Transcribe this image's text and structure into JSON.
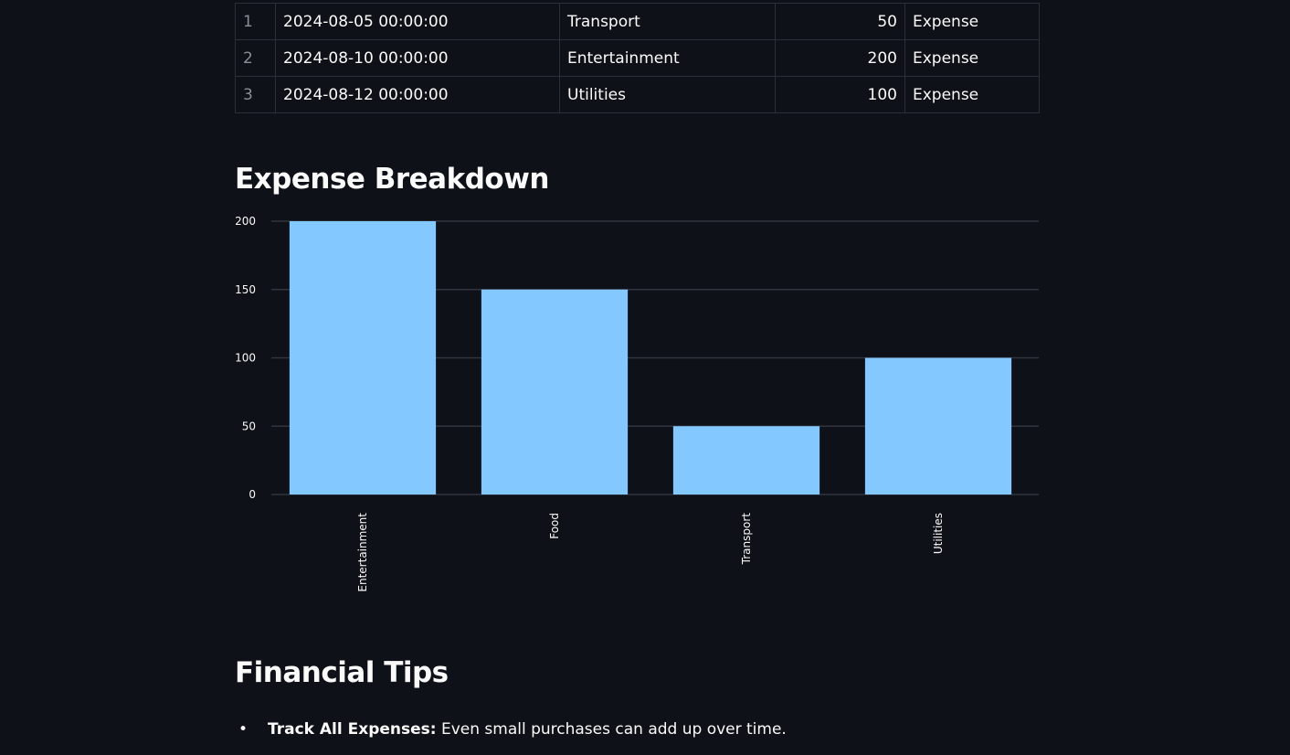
{
  "table": {
    "rows": [
      {
        "index": "1",
        "date": "2024-08-05 00:00:00",
        "category": "Transport",
        "amount": "50",
        "type": "Expense"
      },
      {
        "index": "2",
        "date": "2024-08-10 00:00:00",
        "category": "Entertainment",
        "amount": "200",
        "type": "Expense"
      },
      {
        "index": "3",
        "date": "2024-08-12 00:00:00",
        "category": "Utilities",
        "amount": "100",
        "type": "Expense"
      }
    ]
  },
  "chart_section": {
    "heading": "Expense Breakdown"
  },
  "chart_data": {
    "type": "bar",
    "categories": [
      "Entertainment",
      "Food",
      "Transport",
      "Utilities"
    ],
    "values": [
      200,
      150,
      50,
      100
    ],
    "yticks": [
      0,
      50,
      100,
      150,
      200
    ],
    "ylim": [
      0,
      200
    ],
    "grid": true,
    "bar_color": "#83c9ff",
    "grid_color": "#31333f"
  },
  "tips_section": {
    "heading": "Financial Tips",
    "items": [
      {
        "bullet": "•",
        "title": "Track All Expenses:",
        "text": " Even small purchases can add up over time."
      }
    ]
  },
  "colors": {
    "background": "#0e1117",
    "text": "#fafafa",
    "bar": "#83c9ff"
  }
}
